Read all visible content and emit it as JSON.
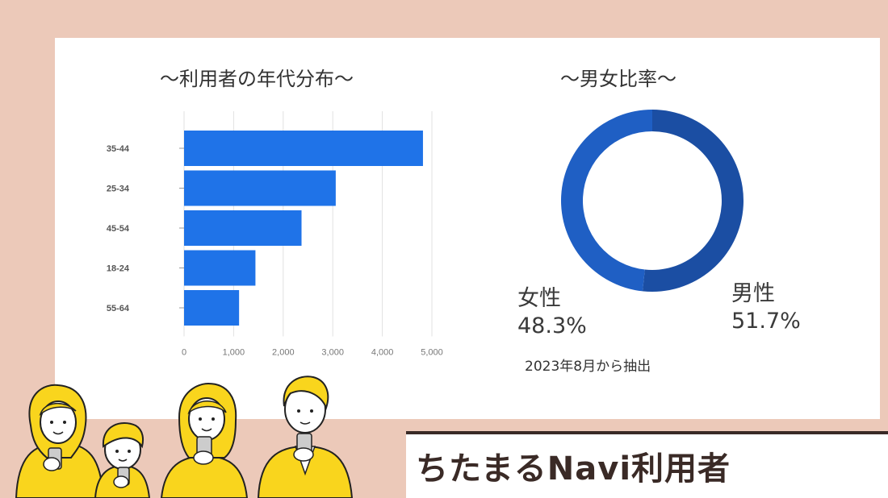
{
  "chart_data": [
    {
      "type": "bar",
      "orientation": "horizontal",
      "title": "～利用者の年代分布～",
      "categories": [
        "35-44",
        "25-34",
        "45-54",
        "18-24",
        "55-64"
      ],
      "values": [
        4820,
        3060,
        2370,
        1440,
        1110
      ],
      "xlim": [
        0,
        5000
      ],
      "xticks": [
        "0",
        "1,000",
        "2,000",
        "3,000",
        "4,000",
        "5,000"
      ],
      "grid": true,
      "color": "#1f73e8"
    },
    {
      "type": "pie",
      "variant": "donut",
      "title": "～男女比率～",
      "slices": [
        {
          "name": "男性",
          "value": 51.7,
          "label": "51.7%",
          "color": "#1b4ea3"
        },
        {
          "name": "女性",
          "value": 48.3,
          "label": "48.3%",
          "color": "#1f5fc4"
        }
      ]
    }
  ],
  "note": "2023年8月から抽出",
  "banner": {
    "text": "ちたまるNavi利用者"
  },
  "colors": {
    "background": "#ecc9b9",
    "card": "#ffffff",
    "bar": "#1f73e8",
    "figure_yellow": "#f9d51d"
  }
}
